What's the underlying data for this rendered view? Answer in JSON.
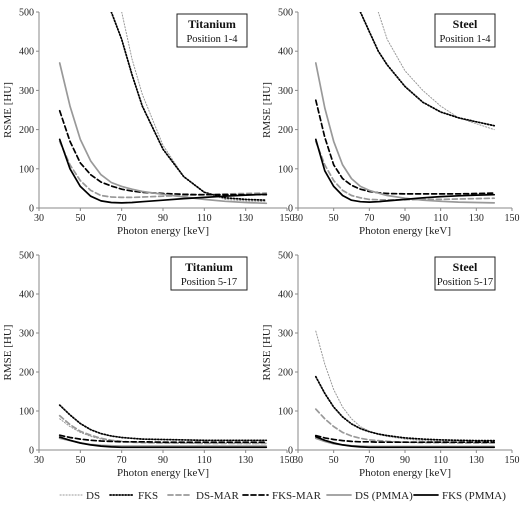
{
  "legend": [
    {
      "label": "DS",
      "color": "#999999",
      "style": "dotted",
      "weight": "thin"
    },
    {
      "label": "FKS",
      "color": "#000000",
      "style": "dotted",
      "weight": "thick"
    },
    {
      "label": "DS-MAR",
      "color": "#999999",
      "style": "dashed",
      "weight": "thick"
    },
    {
      "label": "FKS-MAR",
      "color": "#000000",
      "style": "dashed",
      "weight": "thick"
    },
    {
      "label": "DS (PMMA)",
      "color": "#999999",
      "style": "solid",
      "weight": "thick"
    },
    {
      "label": "FKS (PMMA)",
      "color": "#000000",
      "style": "solid",
      "weight": "thick"
    }
  ],
  "chart_data": [
    {
      "type": "line",
      "title": "Titanium",
      "subtitle": "Position 1-4",
      "xlabel": "Photon energy [keV]",
      "ylabel": "RSME [HU]",
      "xlim": [
        30,
        150
      ],
      "ylim": [
        0,
        500
      ],
      "xticks": [
        30,
        50,
        70,
        90,
        110,
        130,
        150
      ],
      "yticks": [
        0,
        100,
        200,
        300,
        400,
        500
      ],
      "grid": false,
      "x": [
        40,
        45,
        50,
        55,
        60,
        65,
        70,
        75,
        80,
        90,
        100,
        110,
        120,
        130,
        140
      ],
      "series": [
        {
          "name": "DS",
          "values": [
            null,
            null,
            null,
            null,
            null,
            null,
            500,
            380,
            290,
            160,
            80,
            40,
            22,
            18,
            16
          ]
        },
        {
          "name": "FKS",
          "values": [
            null,
            null,
            null,
            null,
            null,
            500,
            430,
            340,
            260,
            150,
            80,
            40,
            26,
            22,
            20
          ]
        },
        {
          "name": "DS-MAR",
          "values": [
            170,
            110,
            70,
            45,
            32,
            28,
            27,
            27,
            28,
            30,
            32,
            34,
            36,
            37,
            38
          ]
        },
        {
          "name": "FKS-MAR",
          "values": [
            248,
            170,
            115,
            85,
            66,
            56,
            48,
            43,
            40,
            37,
            35,
            34,
            34,
            34,
            34
          ]
        },
        {
          "name": "DS (PMMA)",
          "values": [
            370,
            260,
            175,
            120,
            85,
            65,
            55,
            48,
            42,
            35,
            28,
            22,
            17,
            14,
            12
          ]
        },
        {
          "name": "FKS (PMMA)",
          "values": [
            175,
            100,
            55,
            30,
            18,
            14,
            13,
            14,
            16,
            20,
            24,
            27,
            30,
            33,
            35
          ]
        }
      ]
    },
    {
      "type": "line",
      "title": "Steel",
      "subtitle": "Position 1-4",
      "xlabel": "Photon energy [keV]",
      "ylabel": "RMSE [HU]",
      "xlim": [
        30,
        150
      ],
      "ylim": [
        0,
        500
      ],
      "xticks": [
        30,
        50,
        70,
        90,
        110,
        130,
        150
      ],
      "yticks": [
        0,
        100,
        200,
        300,
        400,
        500
      ],
      "grid": false,
      "x": [
        40,
        45,
        50,
        55,
        60,
        65,
        70,
        75,
        80,
        90,
        100,
        110,
        120,
        130,
        140
      ],
      "series": [
        {
          "name": "DS",
          "values": [
            null,
            null,
            null,
            null,
            null,
            null,
            null,
            500,
            430,
            350,
            300,
            260,
            230,
            215,
            200
          ]
        },
        {
          "name": "FKS",
          "values": [
            null,
            null,
            null,
            null,
            null,
            500,
            450,
            400,
            365,
            310,
            270,
            245,
            230,
            220,
            210
          ]
        },
        {
          "name": "DS-MAR",
          "values": [
            170,
            110,
            70,
            45,
            32,
            26,
            22,
            21,
            21,
            21,
            22,
            22,
            23,
            24,
            25
          ]
        },
        {
          "name": "FKS-MAR",
          "values": [
            275,
            180,
            110,
            75,
            58,
            48,
            42,
            39,
            37,
            36,
            36,
            36,
            36,
            37,
            38
          ]
        },
        {
          "name": "DS (PMMA)",
          "values": [
            370,
            255,
            170,
            110,
            75,
            55,
            45,
            38,
            32,
            25,
            20,
            17,
            15,
            14,
            13
          ]
        },
        {
          "name": "FKS (PMMA)",
          "values": [
            175,
            95,
            55,
            32,
            20,
            16,
            15,
            16,
            18,
            22,
            26,
            29,
            31,
            33,
            34
          ]
        }
      ]
    },
    {
      "type": "line",
      "title": "Titanium",
      "subtitle": "Position 5-17",
      "xlabel": "Photon energy [keV]",
      "ylabel": "RMSE [HU]",
      "xlim": [
        30,
        150
      ],
      "ylim": [
        0,
        500
      ],
      "xticks": [
        30,
        50,
        70,
        90,
        110,
        130,
        150
      ],
      "yticks": [
        0,
        100,
        200,
        300,
        400,
        500
      ],
      "grid": false,
      "x": [
        40,
        45,
        50,
        55,
        60,
        65,
        70,
        75,
        80,
        90,
        100,
        110,
        120,
        130,
        140
      ],
      "series": [
        {
          "name": "DS",
          "values": [
            80,
            60,
            45,
            35,
            28,
            24,
            22,
            20,
            19,
            18,
            17,
            17,
            17,
            16,
            16
          ]
        },
        {
          "name": "FKS",
          "values": [
            115,
            90,
            68,
            52,
            42,
            36,
            32,
            30,
            28,
            27,
            26,
            25,
            25,
            25,
            25
          ]
        },
        {
          "name": "DS-MAR",
          "values": [
            88,
            65,
            48,
            38,
            30,
            25,
            22,
            20,
            19,
            18,
            18,
            17,
            17,
            17,
            17
          ]
        },
        {
          "name": "FKS-MAR",
          "values": [
            38,
            32,
            28,
            25,
            23,
            22,
            21,
            21,
            21,
            20,
            20,
            20,
            20,
            20,
            20
          ]
        },
        {
          "name": "DS (PMMA)",
          "values": [
            30,
            24,
            18,
            14,
            12,
            11,
            10,
            10,
            10,
            10,
            10,
            10,
            10,
            10,
            10
          ]
        },
        {
          "name": "FKS (PMMA)",
          "values": [
            33,
            25,
            18,
            13,
            10,
            8,
            7,
            7,
            7,
            7,
            7,
            7,
            7,
            7,
            7
          ]
        }
      ]
    },
    {
      "type": "line",
      "title": "Steel",
      "subtitle": "Position 5-17",
      "xlabel": "Photon energy [keV]",
      "ylabel": "RMSE [HU]",
      "xlim": [
        30,
        150
      ],
      "ylim": [
        0,
        500
      ],
      "xticks": [
        30,
        50,
        70,
        90,
        110,
        130,
        150
      ],
      "yticks": [
        0,
        100,
        200,
        300,
        400,
        500
      ],
      "grid": false,
      "x": [
        40,
        45,
        50,
        55,
        60,
        65,
        70,
        75,
        80,
        90,
        100,
        110,
        120,
        130,
        140
      ],
      "series": [
        {
          "name": "DS",
          "values": [
            305,
            220,
            155,
            110,
            80,
            60,
            48,
            40,
            35,
            28,
            24,
            22,
            20,
            19,
            18
          ]
        },
        {
          "name": "FKS",
          "values": [
            188,
            145,
            110,
            85,
            67,
            55,
            47,
            41,
            37,
            31,
            28,
            26,
            25,
            24,
            24
          ]
        },
        {
          "name": "DS-MAR",
          "values": [
            105,
            80,
            60,
            45,
            36,
            30,
            26,
            24,
            22,
            20,
            19,
            19,
            18,
            18,
            18
          ]
        },
        {
          "name": "FKS-MAR",
          "values": [
            37,
            31,
            27,
            24,
            22,
            21,
            21,
            20,
            20,
            20,
            20,
            20,
            20,
            20,
            20
          ]
        },
        {
          "name": "DS (PMMA)",
          "values": [
            30,
            22,
            16,
            13,
            11,
            10,
            9,
            9,
            9,
            9,
            9,
            9,
            9,
            9,
            9
          ]
        },
        {
          "name": "FKS (PMMA)",
          "values": [
            34,
            25,
            18,
            13,
            10,
            8,
            7,
            7,
            7,
            7,
            7,
            7,
            7,
            7,
            7
          ]
        }
      ]
    }
  ]
}
